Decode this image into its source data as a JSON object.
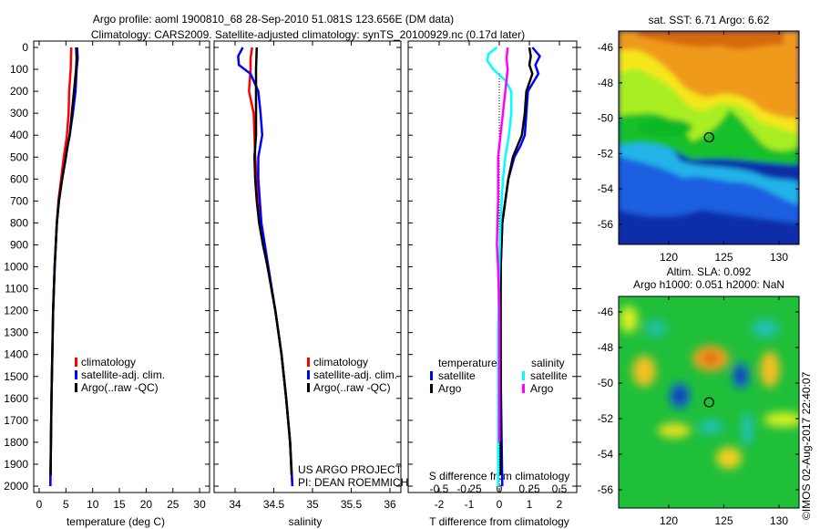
{
  "title": {
    "line1": "Argo profile: aoml 1900810_68 28-Sep-2010 51.081S 123.656E (DM data)",
    "line2": "Climatology: CARS2009. Satellite-adjusted climatology: synTS_20100929.nc (0.17d later)"
  },
  "colors": {
    "climatology": "#ff0000",
    "satellite": "#0000ff",
    "argo": "#000000",
    "s_satellite": "#00ffff",
    "s_argo": "#ff00ff"
  },
  "depth_ticks": [
    "0",
    "100",
    "200",
    "300",
    "400",
    "500",
    "600",
    "700",
    "800",
    "900",
    "1000",
    "1100",
    "1200",
    "1300",
    "1400",
    "1500",
    "1600",
    "1700",
    "1800",
    "1900",
    "2000"
  ],
  "chart_data": [
    {
      "type": "line",
      "id": "temperature",
      "xlabel": "temperature (deg C)",
      "ylabel": "depth",
      "xlim": [
        -1,
        32
      ],
      "ylim": [
        2060,
        0
      ],
      "xticks": [
        "0",
        "5",
        "10",
        "15",
        "20",
        "25",
        "30"
      ],
      "legend": [
        "climatology",
        "satellite-adj. clim.",
        "Argo(..raw -QC)"
      ],
      "series": [
        {
          "name": "climatology",
          "color": "#ff0000",
          "depth": [
            0,
            100,
            200,
            300,
            400,
            450,
            500,
            600,
            700,
            800,
            900,
            1000,
            1200,
            1400,
            1600,
            1800,
            1950,
            2000
          ],
          "values": [
            6.0,
            5.9,
            5.6,
            5.5,
            5.2,
            4.9,
            4.6,
            4.1,
            3.6,
            3.3,
            3.1,
            2.9,
            2.6,
            2.45,
            2.3,
            2.2,
            2.1,
            2.1
          ]
        },
        {
          "name": "satellite-adj. clim.",
          "color": "#0000ff",
          "depth": [
            0,
            50,
            100,
            200,
            300,
            400,
            450,
            500,
            600,
            700,
            800,
            900,
            1000,
            1200,
            1400,
            1600,
            1800,
            2000
          ],
          "values": [
            7.1,
            7.2,
            7.0,
            6.8,
            6.3,
            5.7,
            5.3,
            5.0,
            4.3,
            3.7,
            3.3,
            3.1,
            2.9,
            2.6,
            2.45,
            2.3,
            2.2,
            2.1
          ]
        },
        {
          "name": "Argo(..raw -QC)",
          "color": "#000000",
          "depth": [
            0,
            50,
            100,
            200,
            300,
            400,
            450,
            500,
            600,
            700,
            800,
            900,
            1000,
            1200,
            1400,
            1600,
            1800,
            1950
          ],
          "values": [
            6.9,
            7.0,
            6.9,
            6.5,
            6.1,
            5.7,
            5.3,
            5.0,
            4.3,
            3.7,
            3.3,
            3.1,
            2.9,
            2.6,
            2.45,
            2.3,
            2.2,
            2.15
          ]
        }
      ],
      "annotation": []
    },
    {
      "type": "line",
      "id": "salinity",
      "xlabel": "salinity",
      "ylabel": "depth",
      "xlim": [
        33.73,
        36.1
      ],
      "ylim": [
        2060,
        0
      ],
      "xticks": [
        "34",
        "34.5",
        "35",
        "35.5",
        "36"
      ],
      "legend": [
        "climatology",
        "satellite-adj. clim.",
        "Argo(..raw -QC)"
      ],
      "series": [
        {
          "name": "climatology",
          "color": "#ff0000",
          "depth": [
            0,
            50,
            100,
            200,
            300,
            400,
            500,
            600,
            800,
            1000,
            1200,
            1400,
            1600,
            1800,
            2000
          ],
          "values": [
            34.22,
            34.2,
            34.2,
            34.18,
            34.24,
            34.25,
            34.26,
            34.28,
            34.33,
            34.42,
            34.52,
            34.6,
            34.66,
            34.71,
            34.74
          ]
        },
        {
          "name": "satellite-adj. clim.",
          "color": "#0000ff",
          "depth": [
            0,
            40,
            80,
            120,
            200,
            300,
            400,
            500,
            600,
            800,
            1000,
            1200,
            1400,
            1600,
            1800,
            2000
          ],
          "values": [
            34.1,
            34.04,
            34.05,
            34.2,
            34.3,
            34.33,
            34.35,
            34.3,
            34.3,
            34.34,
            34.43,
            34.52,
            34.6,
            34.66,
            34.71,
            34.74
          ]
        },
        {
          "name": "Argo(..raw -QC)",
          "color": "#000000",
          "depth": [
            0,
            100,
            200,
            300,
            400,
            500,
            600,
            700,
            800,
            900,
            1000,
            1200,
            1400,
            1600,
            1800,
            1950
          ],
          "values": [
            34.28,
            34.27,
            34.27,
            34.27,
            34.27,
            34.25,
            34.26,
            34.28,
            34.31,
            34.36,
            34.42,
            34.52,
            34.6,
            34.66,
            34.71,
            34.73
          ]
        }
      ],
      "annotation": [
        "US ARGO PROJECT",
        "PI: DEAN ROEMMICH"
      ]
    },
    {
      "type": "line",
      "id": "difference",
      "xlabel": "T difference from climatology",
      "x2label": "S difference from climatology",
      "ylabel": "depth",
      "xlim": [
        -3,
        2.9
      ],
      "ylim": [
        2060,
        0
      ],
      "xticks": [
        "-2",
        "-1",
        "0",
        "1",
        "2"
      ],
      "x2ticks": [
        "-0.5",
        "-0.25",
        "0",
        "0.25",
        "0.5"
      ],
      "legend_t_title": "temperature",
      "legend_s_title": "salinity",
      "legend": [
        "satellite",
        "Argo",
        "satellite",
        "Argo"
      ],
      "series": [
        {
          "name": "T satellite",
          "color": "#0000ff",
          "units": "T",
          "depth": [
            0,
            40,
            80,
            120,
            200,
            300,
            400,
            450,
            500,
            600,
            700,
            800,
            1000,
            1200,
            1500,
            2000
          ],
          "values": [
            1.1,
            1.35,
            1.2,
            1.3,
            0.95,
            0.9,
            0.85,
            0.7,
            0.5,
            0.3,
            0.2,
            0.1,
            0.05,
            0.03,
            0.05,
            0.1
          ]
        },
        {
          "name": "T Argo",
          "color": "#000000",
          "units": "T",
          "depth": [
            0,
            40,
            80,
            120,
            200,
            300,
            400,
            450,
            500,
            600,
            700,
            800,
            1000,
            1200,
            1500,
            1950
          ],
          "values": [
            1.0,
            1.05,
            1.0,
            1.1,
            0.9,
            0.85,
            0.75,
            0.6,
            0.45,
            0.3,
            0.2,
            0.1,
            0.05,
            0.05,
            0.05,
            0.05
          ]
        },
        {
          "name": "S satellite",
          "color": "#00ffff",
          "units": "S",
          "depth": [
            0,
            30,
            60,
            100,
            150,
            200,
            300,
            400,
            500,
            600,
            800,
            1000,
            1300,
            1600,
            2000
          ],
          "values": [
            -0.02,
            -0.09,
            -0.1,
            -0.05,
            0.05,
            0.1,
            0.1,
            0.08,
            0.05,
            0.03,
            0.01,
            0.0,
            -0.01,
            -0.01,
            -0.01
          ]
        },
        {
          "name": "S Argo",
          "color": "#ff00ff",
          "units": "S",
          "depth": [
            0,
            50,
            100,
            200,
            300,
            400,
            500,
            700,
            900,
            1000,
            1200,
            1500,
            1800
          ],
          "values": [
            0.07,
            0.06,
            0.07,
            0.05,
            0.03,
            0.01,
            -0.01,
            -0.01,
            -0.02,
            -0.01,
            0.0,
            0.0,
            0.0
          ]
        }
      ]
    },
    {
      "type": "heatmap",
      "id": "sst-map",
      "title": "sat. SST: 6.71  Argo: 6.62",
      "xlim": [
        115.5,
        131.8
      ],
      "ylim": [
        -57.1,
        -45.1
      ],
      "xticks": [
        "120",
        "125",
        "130"
      ],
      "yticks": [
        "-46",
        "-48",
        "-50",
        "-52",
        "-54",
        "-56"
      ],
      "marker": {
        "lon": 123.656,
        "lat": -51.081
      }
    },
    {
      "type": "heatmap",
      "id": "sla-map",
      "title": "Altim. SLA: 0.092",
      "subtitle": "Argo h1000: 0.051  h2000: NaN",
      "xlim": [
        115.5,
        131.8
      ],
      "ylim": [
        -57.1,
        -45.1
      ],
      "xticks": [
        "120",
        "125",
        "130"
      ],
      "yticks": [
        "-46",
        "-48",
        "-50",
        "-52",
        "-54",
        "-56"
      ],
      "marker": {
        "lon": 123.656,
        "lat": -51.081
      }
    }
  ],
  "credit": "©IMOS 02-Aug-2017 22:40:07"
}
